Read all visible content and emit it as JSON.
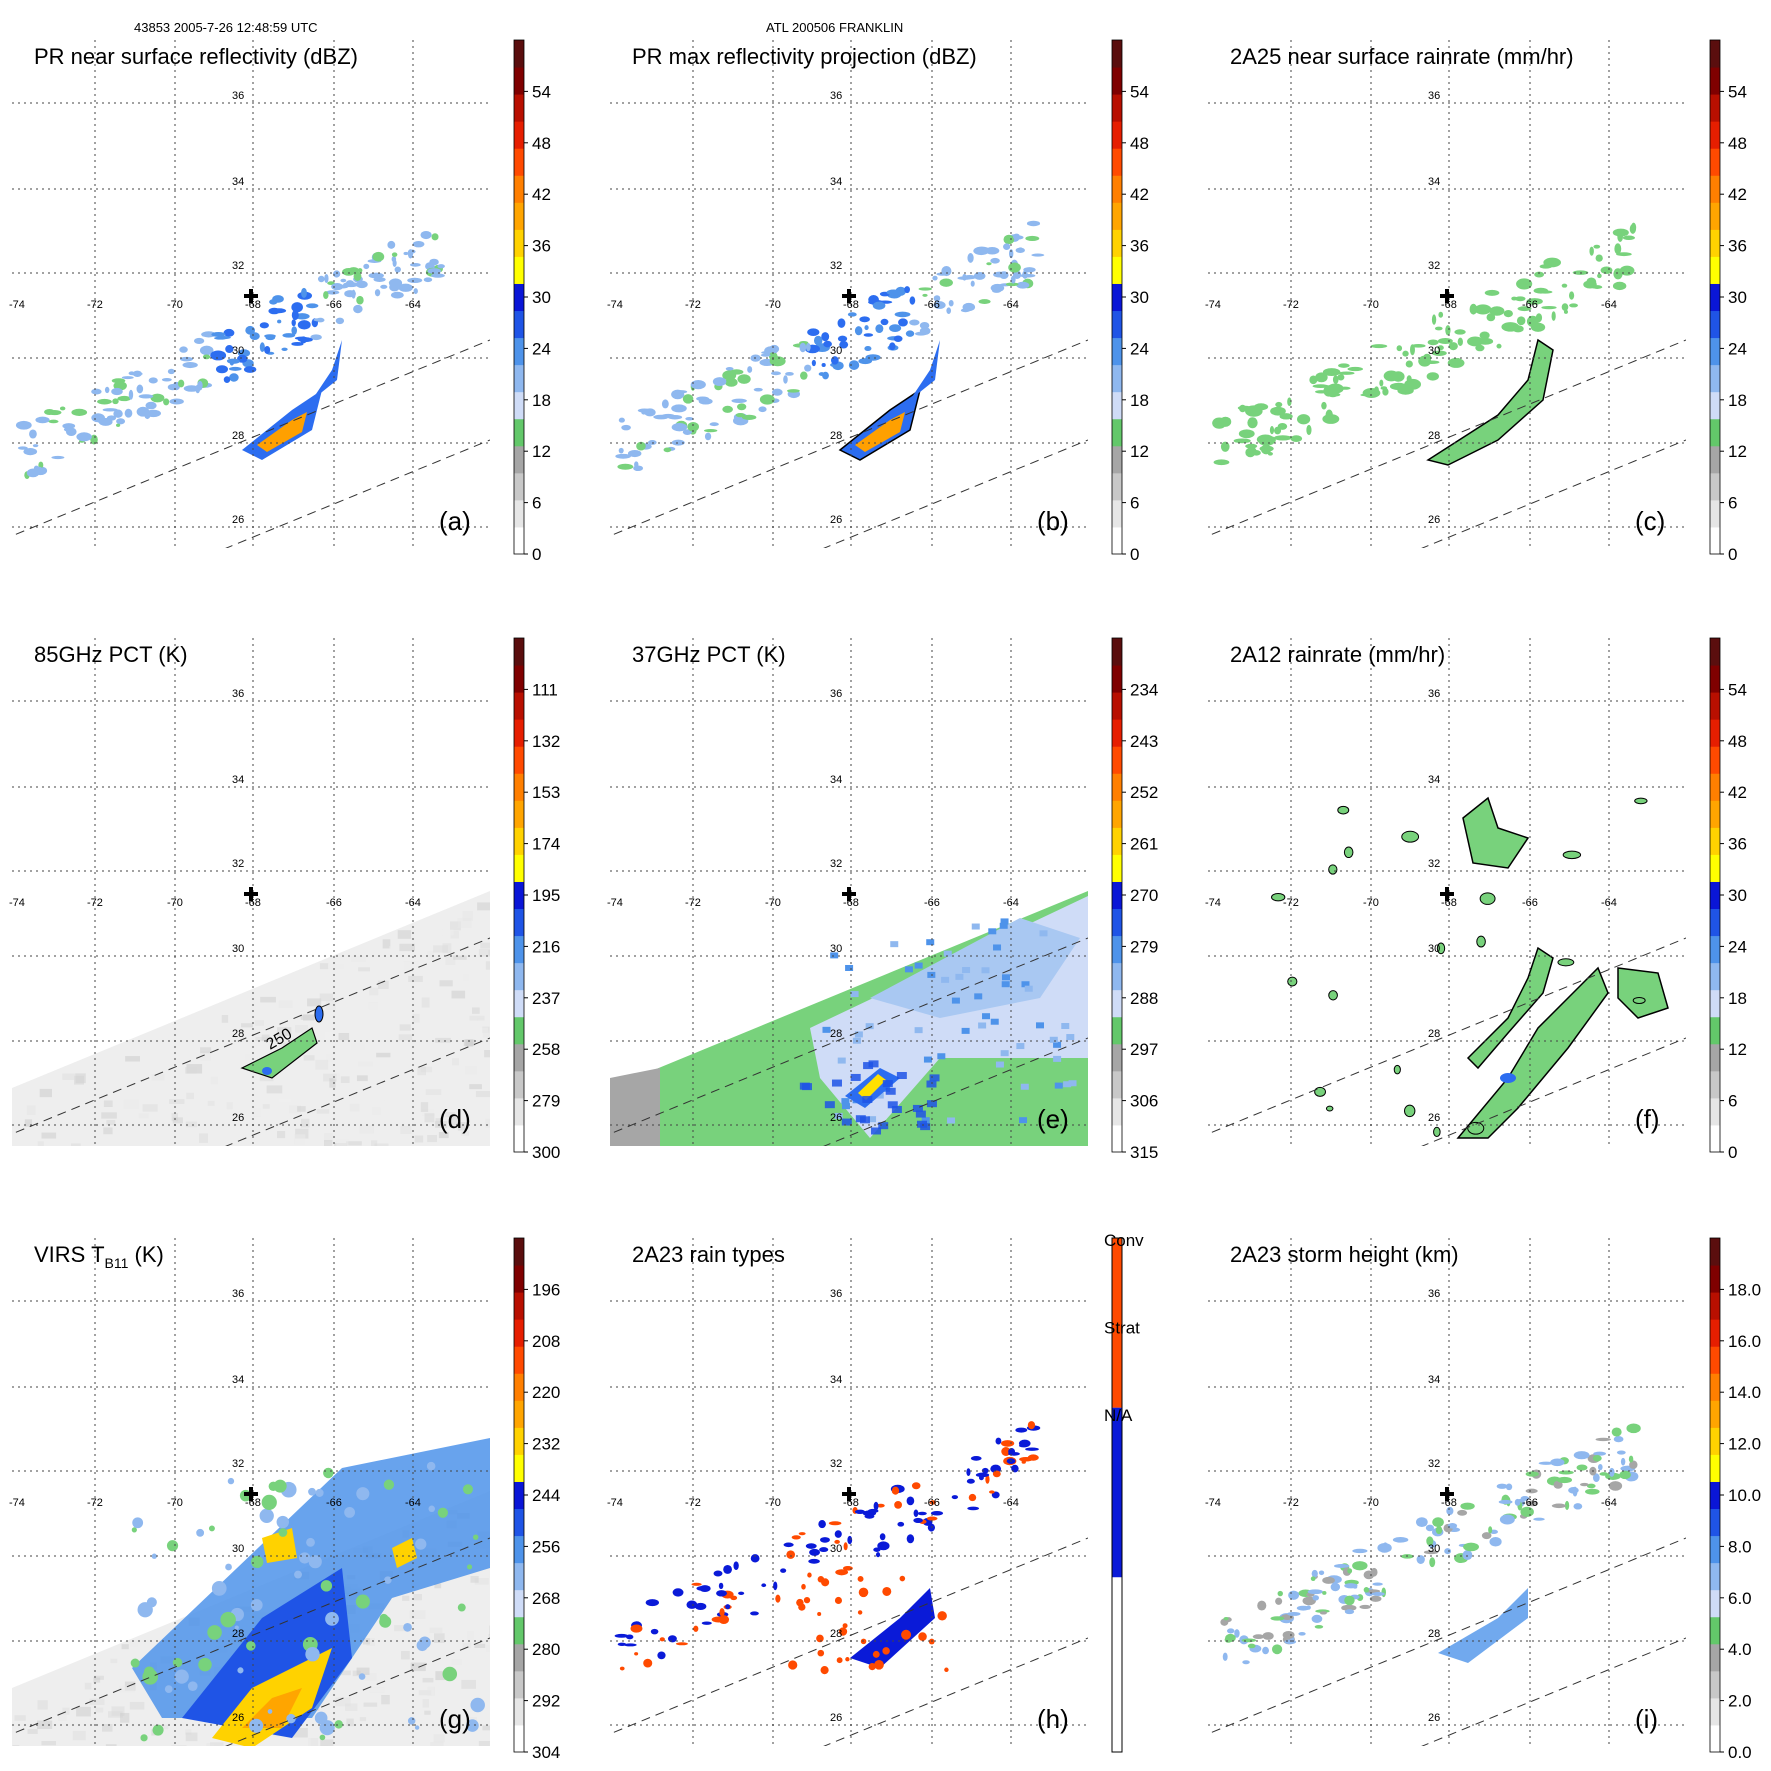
{
  "header": {
    "left": "43853 2005-7-26 12:48:59 UTC",
    "center": "ATL 200506 FRANKLIN"
  },
  "map": {
    "lon_ticks": [
      "-74",
      "-72",
      "-70",
      "-68",
      "-66",
      "-64"
    ],
    "lat_ticks": [
      "36",
      "34",
      "32",
      "30",
      "28",
      "26"
    ],
    "center_marker": "plus-icon"
  },
  "panels": [
    {
      "id": "a",
      "title": "PR near surface reflectivity (dBZ)",
      "label": "(a)",
      "scale_ticks": [
        "0",
        "6",
        "12",
        "18",
        "24",
        "30",
        "36",
        "42",
        "48",
        "54"
      ],
      "field": "swath-rain"
    },
    {
      "id": "b",
      "title": "PR max reflectivity projection (dBZ)",
      "label": "(b)",
      "scale_ticks": [
        "0",
        "6",
        "12",
        "18",
        "24",
        "30",
        "36",
        "42",
        "48",
        "54"
      ],
      "field": "swath-rain-contour"
    },
    {
      "id": "c",
      "title": "2A25 near surface rainrate (mm/hr)",
      "label": "(c)",
      "scale_ticks": [
        "0",
        "6",
        "12",
        "18",
        "24",
        "30",
        "36",
        "42",
        "48",
        "54"
      ],
      "field": "swath-green"
    },
    {
      "id": "d",
      "title": "85GHz PCT (K)",
      "label": "(d)",
      "scale_ticks": [
        "300",
        "279",
        "258",
        "237",
        "216",
        "195",
        "174",
        "153",
        "132",
        "111"
      ],
      "contour_label": "250",
      "field": "wide-gray"
    },
    {
      "id": "e",
      "title": "37GHz PCT (K)",
      "label": "(e)",
      "scale_ticks": [
        "315",
        "306",
        "297",
        "288",
        "279",
        "270",
        "261",
        "252",
        "243",
        "234"
      ],
      "field": "wide-green"
    },
    {
      "id": "f",
      "title": "2A12 rainrate (mm/hr)",
      "label": "(f)",
      "scale_ticks": [
        "0",
        "6",
        "12",
        "18",
        "24",
        "30",
        "36",
        "42",
        "48",
        "54"
      ],
      "field": "wide-rain"
    },
    {
      "id": "g",
      "title": "VIRS T",
      "title_sub": "B11",
      "title_suffix": " (K)",
      "label": "(g)",
      "scale_ticks": [
        "304",
        "292",
        "280",
        "268",
        "256",
        "244",
        "232",
        "220",
        "208",
        "196"
      ],
      "field": "wide-ir"
    },
    {
      "id": "h",
      "title": "2A23 rain types",
      "label": "(h)",
      "scale_ticks": [],
      "categories": [
        "N/A",
        "Strat",
        "Conv"
      ],
      "field": "swath-types"
    },
    {
      "id": "i",
      "title": "2A23 storm height (km)",
      "label": "(i)",
      "scale_ticks": [
        "0.0",
        "2.0",
        "4.0",
        "6.0",
        "8.0",
        "10.0",
        "12.0",
        "14.0",
        "16.0",
        "18.0"
      ],
      "field": "swath-height"
    }
  ],
  "colors": {
    "scale": [
      "#ffffff",
      "#e6e6e6",
      "#c8c8c8",
      "#a6a6a6",
      "#63c86a",
      "#cfdcf7",
      "#8fb8ef",
      "#4e93ea",
      "#1f54e6",
      "#0a16d6",
      "#ffff00",
      "#ffd200",
      "#ffa500",
      "#ff7f00",
      "#ff4a00",
      "#e61e00",
      "#b80f00",
      "#7f0000",
      "#5a0e0e"
    ],
    "rain_green": "#78d27c",
    "rain_blue": "#2c6df0",
    "rain_orange": "#ffa000",
    "conv": "#ff4a00",
    "strat": "#0a1ad8"
  }
}
